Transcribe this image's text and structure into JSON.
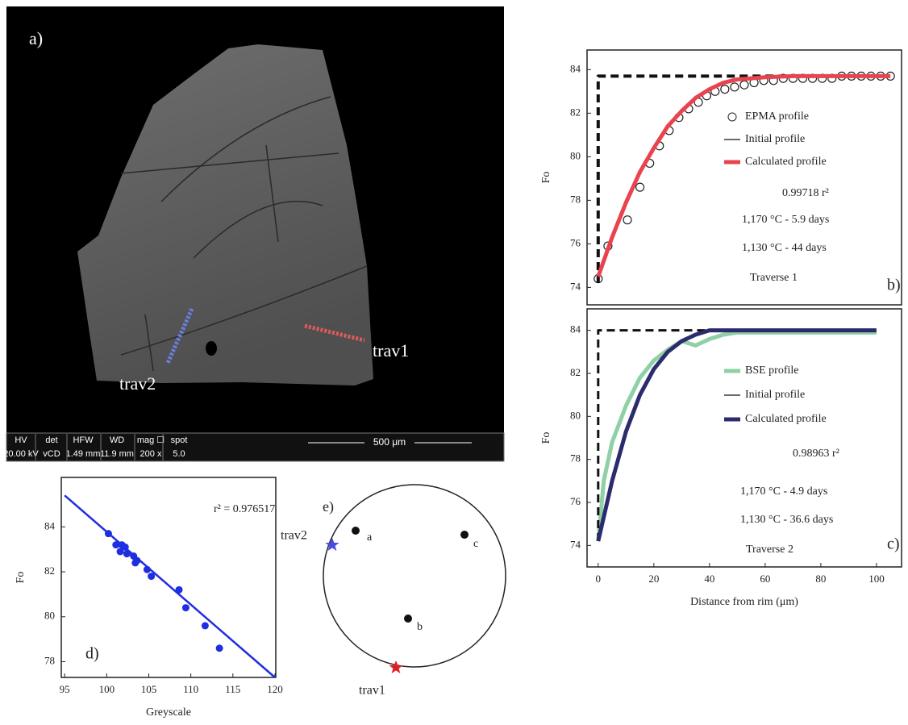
{
  "image_panel": {
    "label": "a)",
    "trav2": "trav2",
    "trav1": "trav1",
    "scale": "500 μm",
    "info_headers": [
      "HV",
      "det",
      "HFW",
      "WD",
      "mag ☐",
      "spot"
    ],
    "info_values": [
      "20.00 kV",
      "vCD",
      "1.49 mm",
      "11.9 mm",
      "200 x",
      "5.0"
    ]
  },
  "stereonet": {
    "label": "e)",
    "points": [
      "a",
      "b",
      "c"
    ],
    "markers": [
      "trav2",
      "trav1"
    ]
  },
  "chart_data": [
    {
      "type": "line",
      "ylabel": "Fo",
      "xlim": [
        -4,
        109
      ],
      "ylim": [
        73.2,
        84.9
      ],
      "yticks": [
        74,
        76,
        78,
        80,
        82,
        84
      ],
      "series": [
        {
          "name": "EPMA profile",
          "color": "#222222",
          "marker": "circle",
          "x": [
            0,
            3.5,
            10.5,
            15,
            18.5,
            22,
            25.5,
            29,
            32.5,
            36,
            39,
            42,
            45.5,
            49,
            52.5,
            56,
            59.5,
            63,
            66.5,
            70,
            73.5,
            77,
            80.5,
            84,
            87.5,
            91,
            94.5,
            98,
            101.5,
            105
          ],
          "values": [
            74.4,
            75.9,
            77.1,
            78.6,
            79.7,
            80.5,
            81.2,
            81.8,
            82.2,
            82.5,
            82.8,
            83.0,
            83.1,
            83.2,
            83.3,
            83.4,
            83.5,
            83.5,
            83.6,
            83.6,
            83.6,
            83.6,
            83.6,
            83.6,
            83.7,
            83.7,
            83.7,
            83.7,
            83.7,
            83.7
          ]
        },
        {
          "name": "Initial profile",
          "color": "#111111",
          "dash": true,
          "width": 4,
          "x": [
            0,
            0,
            105
          ],
          "values": [
            74.2,
            83.7,
            83.7
          ]
        },
        {
          "name": "Calculated profile",
          "color": "#e8434f",
          "width": 5,
          "x": [
            0,
            5,
            10,
            15,
            20,
            25,
            30,
            35,
            40,
            45,
            50,
            55,
            60,
            70,
            80,
            90,
            100,
            105
          ],
          "values": [
            74.5,
            76.3,
            77.9,
            79.3,
            80.4,
            81.4,
            82.1,
            82.7,
            83.1,
            83.4,
            83.55,
            83.6,
            83.65,
            83.7,
            83.7,
            83.7,
            83.7,
            83.7
          ]
        }
      ],
      "annotations": [
        "0.99718 r²",
        "1,170 °C -  5.9 days",
        "1,130 °C -  44 days",
        "Traverse 1",
        "b)"
      ]
    },
    {
      "type": "line",
      "ylabel": "Fo",
      "xlabel": "Distance from rim (μm)",
      "xlim": [
        -4,
        109
      ],
      "ylim": [
        73,
        85
      ],
      "xticks": [
        0,
        20,
        40,
        60,
        80,
        100
      ],
      "yticks": [
        74,
        76,
        78,
        80,
        82,
        84
      ],
      "series": [
        {
          "name": "BSE profile",
          "color": "#8fd0a6",
          "width": 5,
          "x": [
            0,
            2,
            5,
            10,
            15,
            20,
            25,
            30,
            35,
            40,
            45,
            50,
            60,
            70,
            80,
            90,
            100
          ],
          "values": [
            74.2,
            77,
            78.8,
            80.5,
            81.8,
            82.6,
            83.1,
            83.5,
            83.3,
            83.6,
            83.8,
            83.9,
            83.9,
            83.9,
            83.9,
            83.9,
            83.9
          ]
        },
        {
          "name": "Initial profile",
          "color": "#111111",
          "dash": true,
          "width": 3,
          "x": [
            0,
            0,
            100
          ],
          "values": [
            74.2,
            84,
            84
          ]
        },
        {
          "name": "Calculated profile",
          "color": "#2b2c6e",
          "width": 5,
          "x": [
            0,
            5,
            10,
            15,
            20,
            25,
            30,
            35,
            40,
            50,
            60,
            70,
            80,
            90,
            100
          ],
          "values": [
            74.2,
            77.0,
            79.3,
            81.0,
            82.2,
            83.0,
            83.5,
            83.8,
            84.0,
            84.0,
            84.0,
            84.0,
            84.0,
            84.0,
            84.0
          ]
        }
      ],
      "annotations": [
        "0.98963 r²",
        "1,170 °C - 4.9 days",
        "1,130 °C - 36.6 days",
        "Traverse 2",
        "c)"
      ]
    },
    {
      "type": "scatter",
      "ylabel": "Fo",
      "xlabel": "Greyscale",
      "color": "#1f2ee0",
      "xlim": [
        94.6,
        120.1
      ],
      "ylim": [
        77.3,
        86.2
      ],
      "xticks": [
        95,
        100,
        105,
        110,
        115,
        120
      ],
      "yticks": [
        78,
        80,
        82,
        84
      ],
      "x": [
        100.2,
        101.1,
        101.6,
        101.8,
        102.2,
        102.4,
        103.2,
        103.4,
        103.6,
        104.8,
        105.3,
        108.6,
        109.4,
        111.7,
        113.4
      ],
      "values": [
        83.7,
        83.2,
        82.9,
        83.2,
        83.1,
        82.8,
        82.7,
        82.4,
        82.5,
        82.1,
        81.8,
        81.2,
        80.4,
        79.6,
        78.6
      ],
      "fit": {
        "x": [
          95,
          120
        ],
        "values": [
          85.4,
          77.3
        ]
      },
      "annotations": [
        "r² = 0.976517",
        "d)"
      ]
    }
  ]
}
